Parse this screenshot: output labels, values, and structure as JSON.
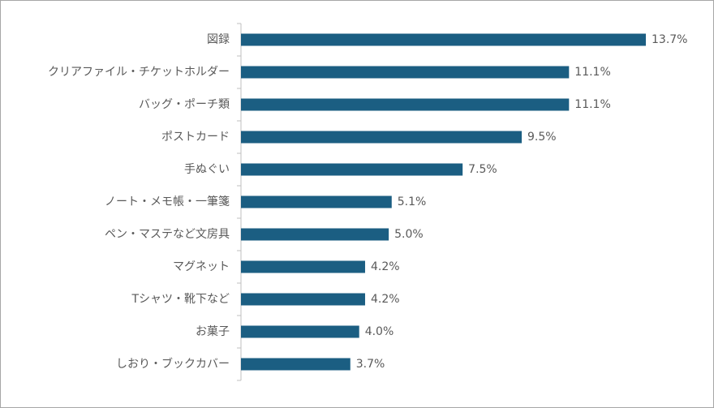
{
  "chart_data": {
    "type": "bar",
    "orientation": "horizontal",
    "color": "#1b5e82",
    "categories": [
      "図録",
      "クリアファイル・チケットホルダー",
      "バッグ・ポーチ類",
      "ポストカード",
      "手ぬぐい",
      "ノート・メモ帳・一筆箋",
      "ペン・マステなど文房具",
      "マグネット",
      "Tシャツ・靴下など",
      "お菓子",
      "しおり・ブックカバー"
    ],
    "values": [
      13.7,
      11.1,
      11.1,
      9.5,
      7.5,
      5.1,
      5.0,
      4.2,
      4.2,
      4.0,
      3.7
    ],
    "value_labels": [
      "13.7%",
      "11.1%",
      "11.1%",
      "9.5%",
      "7.5%",
      "5.1%",
      "5.0%",
      "4.2%",
      "4.2%",
      "4.0%",
      "3.7%"
    ]
  }
}
